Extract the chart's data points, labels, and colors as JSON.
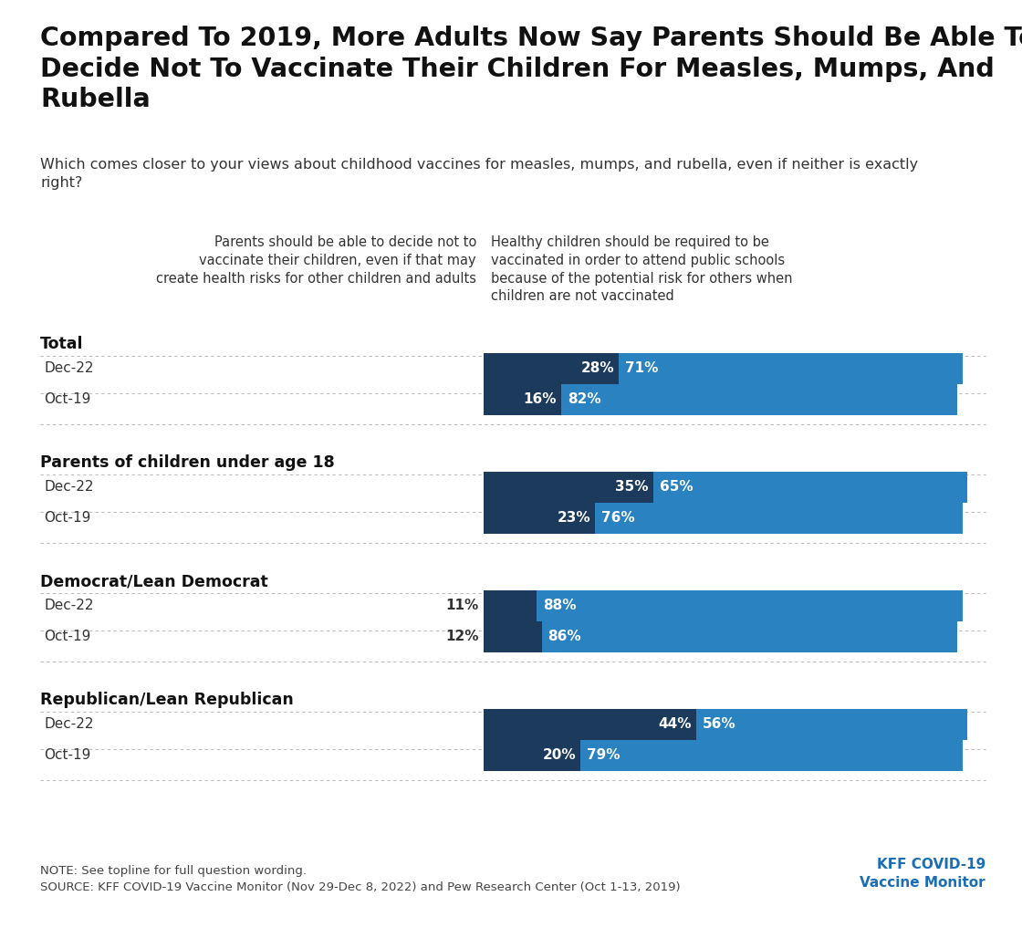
{
  "title": "Compared To 2019, More Adults Now Say Parents Should Be Able To\nDecide Not To Vaccinate Their Children For Measles, Mumps, And\nRubella",
  "subtitle": "Which comes closer to your views about childhood vaccines for measles, mumps, and rubella, even if neither is exactly\nright?",
  "col1_header": "Parents should be able to decide not to\nvaccinate their children, even if that may\ncreate health risks for other children and adults",
  "col2_header": "Healthy children should be required to be\nvaccinated in order to attend public schools\nbecause of the potential risk for others when\nchildren are not vaccinated",
  "groups": [
    {
      "label": "Total",
      "rows": [
        {
          "name": "Dec-22",
          "val1": 28,
          "val2": 71
        },
        {
          "name": "Oct-19",
          "val1": 16,
          "val2": 82
        }
      ]
    },
    {
      "label": "Parents of children under age 18",
      "rows": [
        {
          "name": "Dec-22",
          "val1": 35,
          "val2": 65
        },
        {
          "name": "Oct-19",
          "val1": 23,
          "val2": 76
        }
      ]
    },
    {
      "label": "Democrat/Lean Democrat",
      "rows": [
        {
          "name": "Dec-22",
          "val1": 11,
          "val2": 88
        },
        {
          "name": "Oct-19",
          "val1": 12,
          "val2": 86
        }
      ]
    },
    {
      "label": "Republican/Lean Republican",
      "rows": [
        {
          "name": "Dec-22",
          "val1": 44,
          "val2": 56
        },
        {
          "name": "Oct-19",
          "val1": 20,
          "val2": 79
        }
      ]
    }
  ],
  "color_dark_blue": "#1b3a5c",
  "color_light_blue": "#2a83c0",
  "color_background": "#ffffff",
  "note_text": "NOTE: See topline for full question wording.\nSOURCE: KFF COVID-19 Vaccine Monitor (Nov 29-Dec 8, 2022) and Pew Research Center (Oct 1-13, 2019)",
  "source_label": "KFF COVID-19\nVaccine Monitor",
  "source_color": "#1a6eb5"
}
